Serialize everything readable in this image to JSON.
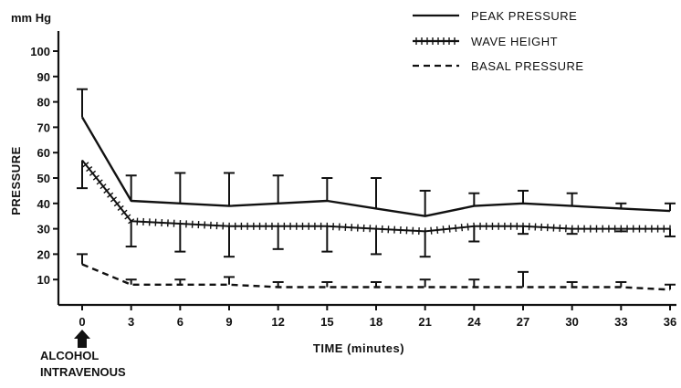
{
  "chart_data": {
    "type": "line",
    "title": "",
    "unit_label": "mm Hg",
    "ylabel": "PRESSURE",
    "xlabel": "TIME (minutes)",
    "annotation": [
      "ALCOHOL",
      "INTRAVENOUS"
    ],
    "annotation_x": 0,
    "x": [
      0,
      3,
      6,
      9,
      12,
      15,
      18,
      21,
      24,
      27,
      30,
      33,
      36
    ],
    "xlim": [
      0,
      36
    ],
    "ylim": [
      0,
      100
    ],
    "yticks": [
      10,
      20,
      30,
      40,
      50,
      60,
      70,
      80,
      90,
      100
    ],
    "grid": false,
    "legend_position": "top-right",
    "series": [
      {
        "name": "PEAK PRESSURE",
        "style": "solid",
        "values": [
          74,
          41,
          40,
          39,
          40,
          41,
          38,
          35,
          39,
          40,
          39,
          38,
          37
        ],
        "error_upper": [
          85,
          51,
          52,
          52,
          51,
          50,
          50,
          45,
          44,
          45,
          44,
          40,
          40
        ]
      },
      {
        "name": "WAVE HEIGHT",
        "style": "crossed",
        "values": [
          57,
          33,
          32,
          31,
          31,
          31,
          30,
          29,
          31,
          31,
          30,
          30,
          30
        ],
        "error_lower": [
          46,
          23,
          21,
          19,
          22,
          21,
          20,
          19,
          25,
          28,
          28,
          29,
          27
        ]
      },
      {
        "name": "BASAL PRESSURE",
        "style": "dashed",
        "values": [
          16,
          8,
          8,
          8,
          7,
          7,
          7,
          7,
          7,
          7,
          7,
          7,
          6
        ],
        "error_upper": [
          20,
          10,
          10,
          11,
          9,
          9,
          9,
          10,
          10,
          13,
          9,
          9,
          8
        ]
      }
    ]
  }
}
